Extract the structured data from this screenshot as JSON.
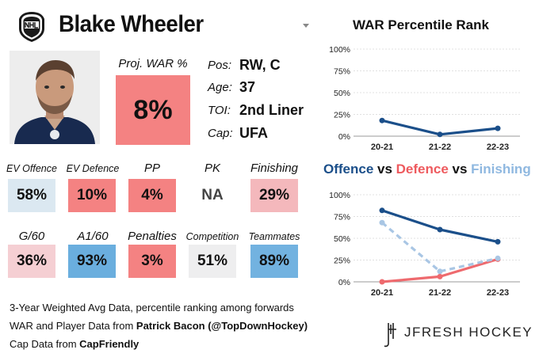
{
  "player": {
    "name": "Blake Wheeler",
    "proj_war_label": "Proj. WAR %",
    "proj_war_value": "8%",
    "bio": [
      {
        "label": "Pos:",
        "value": "RW, C"
      },
      {
        "label": "Age:",
        "value": "37"
      },
      {
        "label": "TOI:",
        "value": "2nd Liner"
      },
      {
        "label": "Cap:",
        "value": "UFA"
      }
    ]
  },
  "stats_row1": [
    {
      "label": "EV Offence",
      "value": "58%",
      "color": "#dbe8f1"
    },
    {
      "label": "EV Defence",
      "value": "10%",
      "color": "#f48282"
    },
    {
      "label": "PP",
      "value": "4%",
      "color": "#f48282"
    },
    {
      "label": "PK",
      "value": "NA",
      "color": "#ffffff"
    },
    {
      "label": "Finishing",
      "value": "29%",
      "color": "#f4b8bc"
    }
  ],
  "stats_row2": [
    {
      "label": "G/60",
      "value": "36%",
      "color": "#f5cfd3"
    },
    {
      "label": "A1/60",
      "value": "93%",
      "color": "#6aaede"
    },
    {
      "label": "Penalties",
      "value": "3%",
      "color": "#f48282"
    },
    {
      "label": "Competition",
      "value": "51%",
      "color": "#eeeeef"
    },
    {
      "label": "Teammates",
      "value": "89%",
      "color": "#72b2e0"
    }
  ],
  "notes": {
    "line1": "3-Year Weighted Avg Data, percentile ranking among forwards",
    "line2_prefix": "WAR and Player Data from ",
    "line2_source": "Patrick Bacon (@TopDownHockey)",
    "line3_prefix": "Cap Data from ",
    "line3_source": "CapFriendly"
  },
  "brand": "JFRESH HOCKEY",
  "colors": {
    "offence": "#1b4f8a",
    "defence": "#ee6a6e",
    "finishing": "#a9c6e4",
    "war_line": "#1b4f8a"
  },
  "chart_data": [
    {
      "type": "line",
      "title": "WAR Percentile Rank",
      "categories": [
        "20-21",
        "21-22",
        "22-23"
      ],
      "ytick_labels": [
        "0%",
        "25%",
        "50%",
        "75%",
        "100%"
      ],
      "ylim": [
        0,
        100
      ],
      "grid": true,
      "series": [
        {
          "values": [
            18,
            2,
            9
          ],
          "color": "#1b4f8a"
        }
      ]
    },
    {
      "type": "line",
      "title_parts": [
        "Offence",
        " vs ",
        "Defence",
        " vs ",
        "Finishing"
      ],
      "categories": [
        "20-21",
        "21-22",
        "22-23"
      ],
      "ytick_labels": [
        "0%",
        "25%",
        "50%",
        "75%",
        "100%"
      ],
      "ylim": [
        0,
        100
      ],
      "grid": true,
      "series": [
        {
          "name": "Offence",
          "values": [
            82,
            60,
            46
          ],
          "color": "#1b4f8a",
          "dash": false
        },
        {
          "name": "Defence",
          "values": [
            0,
            6,
            26
          ],
          "color": "#ee6a6e",
          "dash": false
        },
        {
          "name": "Finishing",
          "values": [
            68,
            12,
            27
          ],
          "color": "#a9c6e4",
          "dash": true
        }
      ]
    }
  ]
}
